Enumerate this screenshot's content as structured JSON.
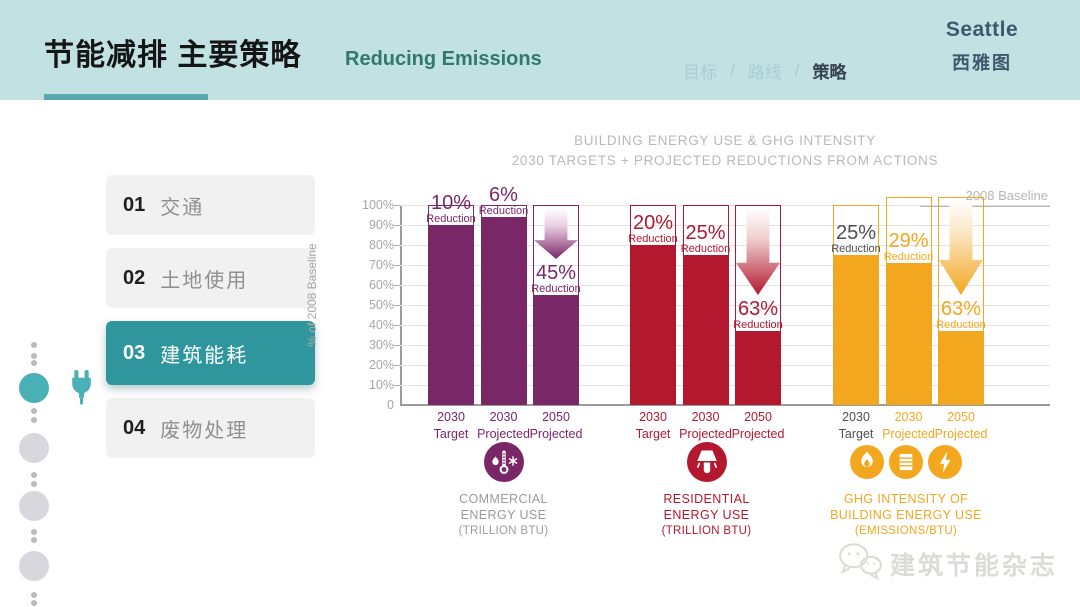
{
  "header": {
    "title": "节能减排 主要策略",
    "subtitle": "Reducing Emissions",
    "breadcrumb": {
      "separator": "/",
      "items": [
        {
          "label": "目标",
          "active": false
        },
        {
          "label": "路线",
          "active": false
        },
        {
          "label": "策略",
          "active": true
        }
      ]
    },
    "brand": {
      "name": "Seattle",
      "name_zh": "西雅图"
    }
  },
  "sidebar": {
    "items": [
      {
        "number": "01",
        "label": "交通",
        "active": false
      },
      {
        "number": "02",
        "label": "土地使用",
        "active": false
      },
      {
        "number": "03",
        "label": "建筑能耗",
        "active": true
      },
      {
        "number": "04",
        "label": "废物处理",
        "active": false
      }
    ]
  },
  "colors": {
    "header_background": "#c1e1e3",
    "accent_teal": "#2f969d",
    "commercial_purple": "#7a2767",
    "residential_red": "#b4182f",
    "ghg_orange": "#f2a71f"
  },
  "chart_data": {
    "type": "bar",
    "title": "BUILDING ENERGY USE & GHG INTENSITY",
    "subtitle": "2030 TARGETS + PROJECTED REDUCTIONS FROM ACTIONS",
    "ylabel": "% of 2008 Baseline",
    "ylim": [
      0,
      100
    ],
    "yticks": [
      "100%",
      "90%",
      "80%",
      "70%",
      "60%",
      "50%",
      "40%",
      "30%",
      "20%",
      "10%",
      "0"
    ],
    "grid": true,
    "baseline_label": "2008 Baseline",
    "reduction_word": "Reduction",
    "groups": [
      {
        "name": "commercial-energy-use",
        "color": "#7a2767",
        "gradient_light": "#e9cfe2",
        "legend_color": "#9b9b9b",
        "legend_lines": [
          "COMMERCIAL",
          "ENERGY USE"
        ],
        "legend_sub": "(TRILLION BTU)",
        "icons": [
          "thermometer-icon"
        ],
        "bars": [
          {
            "category": "2030 Target",
            "value_pct": 90,
            "reduction": "10%",
            "arrow": false
          },
          {
            "category": "2030 Projected",
            "value_pct": 94,
            "reduction": "6%",
            "arrow": false
          },
          {
            "category": "2050 Projected",
            "value_pct": 55,
            "reduction": "45%",
            "arrow": true
          }
        ]
      },
      {
        "name": "residential-energy-use",
        "color": "#b4182f",
        "gradient_light": "#f0cfcf",
        "legend_color": "#b4182f",
        "legend_lines": [
          "RESIDENTIAL",
          "ENERGY USE"
        ],
        "legend_sub": "(TRILLION BTU)",
        "icons": [
          "lamp-icon"
        ],
        "bars": [
          {
            "category": "2030 Target",
            "value_pct": 80,
            "reduction": "20%",
            "arrow": false
          },
          {
            "category": "2030 Projected",
            "value_pct": 75,
            "reduction": "25%",
            "arrow": false
          },
          {
            "category": "2050 Projected",
            "value_pct": 37,
            "reduction": "63%",
            "arrow": true
          }
        ]
      },
      {
        "name": "ghg-intensity-of-building-energy-use",
        "color": "#f2a71f",
        "gradient_light": "#fbe6c2",
        "legend_color": "#f2a71f",
        "legend_lines": [
          "GHG INTENSITY OF",
          "BUILDING ENERGY USE"
        ],
        "legend_sub": "(EMISSIONS/BTU)",
        "icons": [
          "flame-icon",
          "barrel-icon",
          "lightning-icon"
        ],
        "bars": [
          {
            "category": "2030 Target",
            "value_pct": 75,
            "reduction": "25%",
            "arrow": false,
            "label_color": "#4f4f4f",
            "tick_color": "#4f4f4f"
          },
          {
            "category": "2030 Projected",
            "value_pct": 71,
            "reduction": "29%",
            "arrow": false,
            "box_pct": 104
          },
          {
            "category": "2050 Projected",
            "value_pct": 37,
            "reduction": "63%",
            "arrow": true,
            "box_pct": 104
          }
        ]
      }
    ]
  },
  "watermark": {
    "text": "建筑节能杂志"
  }
}
